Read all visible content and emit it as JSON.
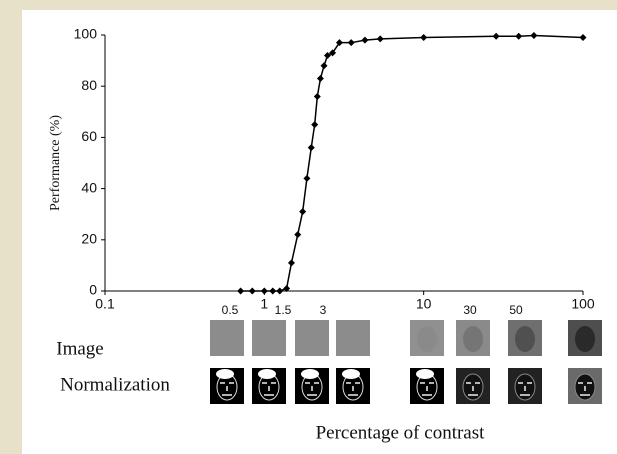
{
  "chart_data": {
    "type": "line",
    "ylabel": "Performance (%)",
    "xlabel": "Percentage of contrast",
    "x": [
      0.71,
      0.84,
      1,
      1.13,
      1.25,
      1.38,
      1.48,
      1.62,
      1.74,
      1.85,
      1.97,
      2.07,
      2.15,
      2.25,
      2.37,
      2.49,
      2.68,
      2.96,
      3.51,
      4.28,
      5.34,
      10,
      28.5,
      39.5,
      49.2,
      100
    ],
    "values": [
      0,
      0,
      0,
      0,
      0,
      1,
      11,
      22,
      31,
      44,
      56,
      65,
      76,
      83,
      88,
      92,
      93,
      97,
      97,
      98,
      98.5,
      99,
      99.5,
      99.5,
      99.8,
      99
    ],
    "color": "#000000",
    "log_x": true,
    "xlim": [
      0.1,
      100
    ],
    "xticks": [
      0.1,
      1,
      10,
      100
    ],
    "ylim": [
      0,
      100
    ],
    "yticks": [
      0,
      20,
      40,
      60,
      80,
      100
    ],
    "thumbnail_labels": [
      "0.5",
      "1.5",
      "3",
      "30",
      "50"
    ],
    "row_labels": [
      "Image",
      "Normalization"
    ]
  }
}
